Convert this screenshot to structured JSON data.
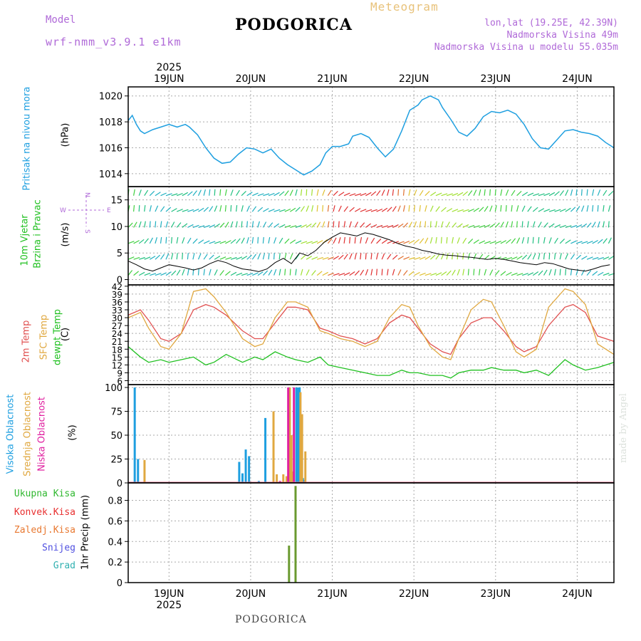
{
  "header": {
    "model_label": "Model",
    "model_run": "wrf-nmm_v3.9.1 e1km",
    "station": "PODGORICA",
    "product": "Meteogram",
    "coords": "lon,lat (19.25E, 42.39N)",
    "elevation": "Nadmorska Visina 49m",
    "model_elevation": "Nadmorska Visina u modelu 55.035m"
  },
  "footer": {
    "station": "PODGORICA",
    "credit": "made by Angel"
  },
  "time_axis": {
    "year_label": "2025",
    "day_labels": [
      "19JUN",
      "20JUN",
      "21JUN",
      "22JUN",
      "23JUN",
      "24JUN"
    ],
    "day_positions": [
      0.5,
      1.5,
      2.5,
      3.5,
      4.5,
      5.5
    ],
    "range": [
      0,
      5.95
    ]
  },
  "compass": {
    "n": "N",
    "s": "S",
    "e": "E",
    "w": "W"
  },
  "chart_data": [
    {
      "type": "line",
      "id": "pressure",
      "ylabel_main": "Pritisak na nivou mora",
      "ylabel_unit": "(hPa)",
      "ylim": [
        1013,
        1020.7
      ],
      "yticks": [
        1014,
        1016,
        1018,
        1020
      ],
      "grid": true,
      "series": [
        {
          "color": "#1e9fe0",
          "x": [
            0,
            0.05,
            0.1,
            0.15,
            0.2,
            0.3,
            0.4,
            0.5,
            0.6,
            0.7,
            0.75,
            0.85,
            0.95,
            1.05,
            1.15,
            1.25,
            1.35,
            1.45,
            1.55,
            1.65,
            1.75,
            1.85,
            1.95,
            2.05,
            2.15,
            2.25,
            2.35,
            2.42,
            2.5,
            2.6,
            2.7,
            2.75,
            2.85,
            2.95,
            3.05,
            3.15,
            3.25,
            3.35,
            3.45,
            3.55,
            3.6,
            3.7,
            3.8,
            3.85,
            3.95,
            4.05,
            4.15,
            4.25,
            4.35,
            4.45,
            4.55,
            4.65,
            4.75,
            4.85,
            4.95,
            5.05,
            5.15,
            5.25,
            5.35,
            5.45,
            5.55,
            5.65,
            5.75,
            5.85,
            5.95
          ],
          "y": [
            1018.1,
            1018.5,
            1017.8,
            1017.3,
            1017.1,
            1017.4,
            1017.6,
            1017.8,
            1017.6,
            1017.8,
            1017.6,
            1017.0,
            1016.0,
            1015.2,
            1014.8,
            1014.9,
            1015.5,
            1016.0,
            1015.9,
            1015.6,
            1015.9,
            1015.2,
            1014.7,
            1014.3,
            1013.9,
            1014.2,
            1014.7,
            1015.6,
            1016.1,
            1016.1,
            1016.3,
            1016.9,
            1017.1,
            1016.8,
            1016.0,
            1015.3,
            1015.9,
            1017.3,
            1018.9,
            1019.3,
            1019.7,
            1020.0,
            1019.7,
            1019.1,
            1018.2,
            1017.2,
            1016.9,
            1017.5,
            1018.4,
            1018.8,
            1018.7,
            1018.9,
            1018.6,
            1017.8,
            1016.7,
            1016.0,
            1015.9,
            1016.6,
            1017.3,
            1017.4,
            1017.2,
            1017.1,
            1016.9,
            1016.4,
            1016.0
          ]
        }
      ]
    },
    {
      "type": "vector",
      "id": "wind",
      "ylabel_main_1": "10m Vjetar",
      "ylabel_main_2": "Brzina i Pravac",
      "ylabel_unit": "(m/s)",
      "ylim": [
        -1,
        17.5
      ],
      "yticks": [
        0,
        5,
        10,
        15
      ],
      "grid": true,
      "speed_series": [
        {
          "name": "speed",
          "x": [
            0,
            0.1,
            0.2,
            0.3,
            0.4,
            0.5,
            0.6,
            0.7,
            0.8,
            0.9,
            1.0,
            1.1,
            1.2,
            1.3,
            1.4,
            1.5,
            1.6,
            1.7,
            1.8,
            1.9,
            2.0,
            2.1,
            2.2,
            2.3,
            2.4,
            2.5,
            2.6,
            2.7,
            2.8,
            2.9,
            3.0,
            3.1,
            3.2,
            3.3,
            3.4,
            3.5,
            3.6,
            3.7,
            3.8,
            3.9,
            4.0,
            4.1,
            4.2,
            4.3,
            4.4,
            4.5,
            4.6,
            4.7,
            4.8,
            4.9,
            5.0,
            5.1,
            5.2,
            5.3,
            5.4,
            5.5,
            5.6,
            5.7,
            5.8,
            5.9
          ],
          "y": [
            3.5,
            2.8,
            2.0,
            1.6,
            2.2,
            2.8,
            2.5,
            2.2,
            1.8,
            2.2,
            3.0,
            3.6,
            3.2,
            2.5,
            2.0,
            1.8,
            1.5,
            2.0,
            3.2,
            4.0,
            3.0,
            5.0,
            4.5,
            5.5,
            7.0,
            8.0,
            8.8,
            8.5,
            8.2,
            8.8,
            8.5,
            8.0,
            7.5,
            6.8,
            6.3,
            6.0,
            5.5,
            5.2,
            4.8,
            4.6,
            4.5,
            4.3,
            4.2,
            4.0,
            3.8,
            4.0,
            3.8,
            3.5,
            3.2,
            3.0,
            2.8,
            3.2,
            3.0,
            2.5,
            2.0,
            1.8,
            1.6,
            2.0,
            2.5,
            2.8
          ]
        }
      ]
    },
    {
      "type": "line",
      "id": "temperature",
      "ylabel_main_1": "2m Temp",
      "ylabel_main_2": "SFC Temp",
      "ylabel_main_3": "dewpt Temp",
      "ylabel_unit": "(C)",
      "ylim": [
        4.5,
        42.5
      ],
      "yticks": [
        6,
        9,
        12,
        15,
        18,
        21,
        24,
        27,
        30,
        33,
        36,
        39,
        42
      ],
      "grid": true,
      "x": [
        0,
        0.15,
        0.25,
        0.4,
        0.5,
        0.65,
        0.8,
        0.95,
        1.05,
        1.2,
        1.4,
        1.55,
        1.65,
        1.8,
        1.95,
        2.05,
        2.2,
        2.35,
        2.45,
        2.6,
        2.75,
        2.9,
        3.05,
        3.2,
        3.35,
        3.45,
        3.55,
        3.7,
        3.85,
        3.95,
        4.05,
        4.2,
        4.35,
        4.45,
        4.6,
        4.75,
        4.85,
        5.0,
        5.15,
        5.35,
        5.45,
        5.6,
        5.75,
        5.95
      ],
      "series": [
        {
          "color": "#e05050",
          "y": [
            31,
            33,
            29,
            22,
            21,
            24,
            33,
            35,
            34,
            31,
            25,
            22,
            22,
            28,
            34,
            34,
            33,
            26,
            25,
            23,
            22,
            20,
            22,
            28,
            31,
            30,
            26,
            20,
            17,
            16,
            22,
            28,
            30,
            30,
            25,
            19,
            17,
            19,
            27,
            34,
            35,
            32,
            23,
            21
          ]
        },
        {
          "color": "#e0a840",
          "y": [
            30,
            32,
            26,
            19,
            18,
            24,
            40,
            41,
            38,
            32,
            22,
            19,
            20,
            30,
            36,
            36,
            34,
            25,
            24,
            22,
            21,
            19,
            21,
            30,
            35,
            34,
            27,
            19,
            15,
            14,
            22,
            33,
            37,
            36,
            27,
            17,
            15,
            18,
            34,
            41,
            40,
            35,
            20,
            16
          ]
        },
        {
          "color": "#20c020",
          "y": [
            19,
            15,
            13,
            14,
            13,
            14,
            15,
            12,
            13,
            16,
            13,
            15,
            14,
            17,
            15,
            14,
            13,
            15,
            12,
            11,
            10,
            9,
            8,
            8,
            10,
            9,
            9,
            8,
            8,
            7,
            9,
            10,
            10,
            11,
            10,
            10,
            9,
            10,
            8,
            14,
            12,
            10,
            11,
            13
          ]
        }
      ],
      "x2": [
        5.95
      ],
      "y2": [
        34
      ]
    },
    {
      "type": "bar",
      "id": "cloud",
      "ylabel_main_1": "Visoka Oblacnost",
      "ylabel_main_2": "Srednja Oblacnost",
      "ylabel_main_3": "Niska Oblacnost",
      "ylabel_unit": "(%)",
      "ylim": [
        0,
        103
      ],
      "yticks": [
        0,
        25,
        50,
        75,
        100
      ],
      "grid": true,
      "series": [
        {
          "name": "high",
          "color": "#1e9fe0",
          "x": [
            0.08,
            0.12,
            1.36,
            1.4,
            1.44,
            1.48,
            1.6,
            1.68,
            2.06,
            2.08,
            2.1,
            2.12,
            2.14,
            2.16
          ],
          "values": [
            100,
            25,
            22,
            10,
            35,
            28,
            2,
            68,
            100,
            100,
            100,
            30,
            5,
            3
          ]
        },
        {
          "name": "mid",
          "color": "#e0a840",
          "x": [
            0.2,
            1.78,
            1.82,
            1.9,
            1.94,
            1.98,
            2.0,
            2.02,
            2.11,
            2.13,
            2.17
          ],
          "values": [
            24,
            75,
            9,
            9,
            7,
            100,
            50,
            12,
            95,
            72,
            33
          ]
        },
        {
          "name": "low",
          "color": "#e020a0",
          "x": [
            1.86,
            1.96,
            2.03
          ],
          "values": [
            2,
            100,
            100
          ]
        }
      ]
    },
    {
      "type": "bar",
      "id": "precip",
      "ylabel_unit": "1hr Precip (mm)",
      "ylim": [
        0,
        0.97
      ],
      "yticks": [
        0,
        0.2,
        0.4,
        0.6,
        0.8
      ],
      "ytick_labels": [
        "0",
        "0.2",
        "0.4",
        "0.6",
        "0.8"
      ],
      "grid": true,
      "legend": [
        "Ukupna Kisa",
        "Konvek.Kisa",
        "Zaledj.Kisa",
        "Snijeg",
        "Grad"
      ],
      "legend_colors": [
        "#30b830",
        "#e83030",
        "#e87830",
        "#5050e0",
        "#30b0b0"
      ],
      "series": [
        {
          "name": "Ukupna Kisa",
          "color": "#6a9a30",
          "x": [
            1.97,
            2.05
          ],
          "values": [
            0.36,
            0.94
          ]
        }
      ]
    }
  ]
}
